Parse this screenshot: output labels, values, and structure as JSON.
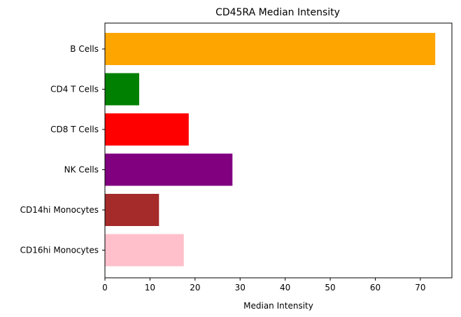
{
  "chart_data": {
    "type": "bar",
    "orientation": "horizontal",
    "title": "CD45RA Median Intensity",
    "xlabel": "Median Intensity",
    "ylabel": "",
    "xlim": [
      0,
      77
    ],
    "xticks": [
      0,
      10,
      20,
      30,
      40,
      50,
      60,
      70
    ],
    "categories": [
      "B Cells",
      "CD4 T Cells",
      "CD8 T Cells",
      "NK Cells",
      "CD14hi Monocytes",
      "CD16hi Monocytes"
    ],
    "values": [
      73.3,
      7.6,
      18.6,
      28.3,
      12.0,
      17.5
    ],
    "colors": [
      "#ffa500",
      "#008000",
      "#ff0000",
      "#800080",
      "#a52a2a",
      "#ffc0cb"
    ],
    "grid": false,
    "legend": "none"
  }
}
